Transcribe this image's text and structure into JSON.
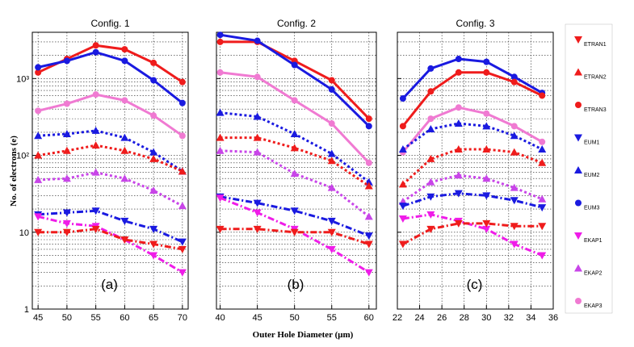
{
  "chart_data": {
    "type": "line",
    "ylabel": "No. of electrons (e)",
    "xlabel": "Outer Hole Diameter (μm)",
    "yscale": "log",
    "ylim": [
      1,
      4000
    ],
    "yticks": [
      {
        "v": 1,
        "t": "1"
      },
      {
        "v": 10,
        "t": "10"
      },
      {
        "v": 100,
        "t": "10²"
      },
      {
        "v": 1000,
        "t": "10³"
      }
    ],
    "colors": {
      "red": "#ef1c1c",
      "blue": "#1a1ae0",
      "pink": "#f07ad2",
      "violet": "#c845e8",
      "magenta": "#ef1ce8"
    },
    "legend_position": "right",
    "legend": [
      {
        "name": "ETRAN1",
        "color": "red",
        "marker": "tri-down"
      },
      {
        "name": "ETRAN2",
        "color": "red",
        "marker": "tri-up"
      },
      {
        "name": "ETRAN3",
        "color": "red",
        "marker": "circle"
      },
      {
        "name": "EUM1",
        "color": "blue",
        "marker": "tri-down"
      },
      {
        "name": "EUM2",
        "color": "blue",
        "marker": "tri-up"
      },
      {
        "name": "EUM3",
        "color": "blue",
        "marker": "circle"
      },
      {
        "name": "EKAP1",
        "color": "magenta",
        "marker": "tri-down"
      },
      {
        "name": "EKAP2",
        "color": "violet",
        "marker": "tri-up"
      },
      {
        "name": "EKAP3",
        "color": "pink",
        "marker": "circle"
      }
    ],
    "panels": [
      {
        "title": "Config. 1",
        "label": "(a)",
        "xlim": [
          44,
          71
        ],
        "xticks": [
          45,
          50,
          55,
          60,
          65,
          70
        ],
        "x": [
          45,
          50,
          55,
          60,
          65,
          70
        ],
        "series": [
          {
            "name": "ETRAN3",
            "color": "red",
            "marker": "circle",
            "dash": "solid",
            "values": [
              1200,
              1800,
              2700,
              2400,
              1600,
              900
            ]
          },
          {
            "name": "EUM3",
            "color": "blue",
            "marker": "circle",
            "dash": "solid",
            "values": [
              1400,
              1700,
              2200,
              1700,
              950,
              480
            ]
          },
          {
            "name": "EKAP3",
            "color": "pink",
            "marker": "circle",
            "dash": "solid",
            "values": [
              380,
              470,
              620,
              520,
              330,
              180
            ]
          },
          {
            "name": "EUM2",
            "color": "blue",
            "marker": "tri-up",
            "dash": "dot",
            "values": [
              180,
              190,
              210,
              170,
              110,
              62
            ]
          },
          {
            "name": "ETRAN2",
            "color": "red",
            "marker": "tri-up",
            "dash": "dot",
            "values": [
              100,
              115,
              135,
              115,
              90,
              62
            ]
          },
          {
            "name": "EKAP2",
            "color": "violet",
            "marker": "tri-up",
            "dash": "dot",
            "values": [
              48,
              50,
              60,
              50,
              35,
              22
            ]
          },
          {
            "name": "EUM1",
            "color": "blue",
            "marker": "tri-down",
            "dash": "dashdot",
            "values": [
              17,
              18,
              19,
              14,
              11,
              7.5
            ]
          },
          {
            "name": "EKAP1",
            "color": "magenta",
            "marker": "tri-down",
            "dash": "dashdot",
            "values": [
              16,
              13,
              12,
              8,
              5,
              3
            ]
          },
          {
            "name": "ETRAN1",
            "color": "red",
            "marker": "tri-down",
            "dash": "dashdot",
            "values": [
              10,
              10,
              11,
              8,
              7,
              6
            ]
          }
        ]
      },
      {
        "title": "Config. 2",
        "label": "(b)",
        "xlim": [
          39.5,
          61
        ],
        "xticks": [
          40,
          45,
          50,
          55,
          60
        ],
        "x": [
          40,
          45,
          50,
          55,
          60
        ],
        "series": [
          {
            "name": "ETRAN3",
            "color": "red",
            "marker": "circle",
            "dash": "solid",
            "values": [
              3000,
              3000,
              1700,
              950,
              300
            ]
          },
          {
            "name": "EUM3",
            "color": "blue",
            "marker": "circle",
            "dash": "solid",
            "values": [
              3700,
              3100,
              1500,
              720,
              240
            ]
          },
          {
            "name": "EKAP3",
            "color": "pink",
            "marker": "circle",
            "dash": "solid",
            "values": [
              1200,
              1050,
              520,
              260,
              80
            ]
          },
          {
            "name": "EUM2",
            "color": "blue",
            "marker": "tri-up",
            "dash": "dot",
            "values": [
              360,
              320,
              190,
              105,
              45
            ]
          },
          {
            "name": "ETRAN2",
            "color": "red",
            "marker": "tri-up",
            "dash": "dot",
            "values": [
              170,
              170,
              125,
              85,
              40
            ]
          },
          {
            "name": "EKAP2",
            "color": "violet",
            "marker": "tri-up",
            "dash": "dot",
            "values": [
              115,
              110,
              58,
              38,
              16
            ]
          },
          {
            "name": "EUM1",
            "color": "blue",
            "marker": "tri-down",
            "dash": "dashdot",
            "values": [
              29,
              24,
              19,
              14,
              9
            ]
          },
          {
            "name": "EKAP1",
            "color": "magenta",
            "marker": "tri-down",
            "dash": "dashdot",
            "values": [
              28,
              18,
              11,
              6,
              3
            ]
          },
          {
            "name": "ETRAN1",
            "color": "red",
            "marker": "tri-down",
            "dash": "dashdot",
            "values": [
              11,
              11,
              10,
              10,
              7
            ]
          }
        ]
      },
      {
        "title": "Config. 3",
        "label": "(c)",
        "xlim": [
          22,
          36
        ],
        "xticks": [
          22,
          24,
          26,
          28,
          30,
          32,
          34,
          36
        ],
        "x": [
          22.5,
          25,
          27.5,
          30,
          32.5,
          35
        ],
        "series": [
          {
            "name": "EUM3",
            "color": "blue",
            "marker": "circle",
            "dash": "solid",
            "values": [
              550,
              1350,
              1800,
              1650,
              1050,
              650
            ]
          },
          {
            "name": "ETRAN3",
            "color": "red",
            "marker": "circle",
            "dash": "solid",
            "values": [
              240,
              680,
              1200,
              1200,
              900,
              600
            ]
          },
          {
            "name": "EKAP3",
            "color": "pink",
            "marker": "circle",
            "dash": "solid",
            "values": [
              110,
              300,
              420,
              350,
              240,
              150
            ]
          },
          {
            "name": "EUM2",
            "color": "blue",
            "marker": "tri-up",
            "dash": "dot",
            "values": [
              120,
              220,
              260,
              240,
              180,
              120
            ]
          },
          {
            "name": "ETRAN2",
            "color": "red",
            "marker": "tri-up",
            "dash": "dot",
            "values": [
              42,
              90,
              120,
              120,
              110,
              80
            ]
          },
          {
            "name": "EKAP2",
            "color": "violet",
            "marker": "tri-up",
            "dash": "dot",
            "values": [
              25,
              45,
              55,
              50,
              38,
              27
            ]
          },
          {
            "name": "EUM1",
            "color": "blue",
            "marker": "tri-down",
            "dash": "dashdot",
            "values": [
              22,
              29,
              32,
              30,
              26,
              21
            ]
          },
          {
            "name": "EKAP1",
            "color": "magenta",
            "marker": "tri-down",
            "dash": "dashdot",
            "values": [
              15,
              17,
              14,
              11,
              7,
              5
            ]
          },
          {
            "name": "ETRAN1",
            "color": "red",
            "marker": "tri-down",
            "dash": "dashdot",
            "values": [
              7,
              11,
              13,
              13,
              12,
              12
            ]
          }
        ]
      }
    ]
  }
}
